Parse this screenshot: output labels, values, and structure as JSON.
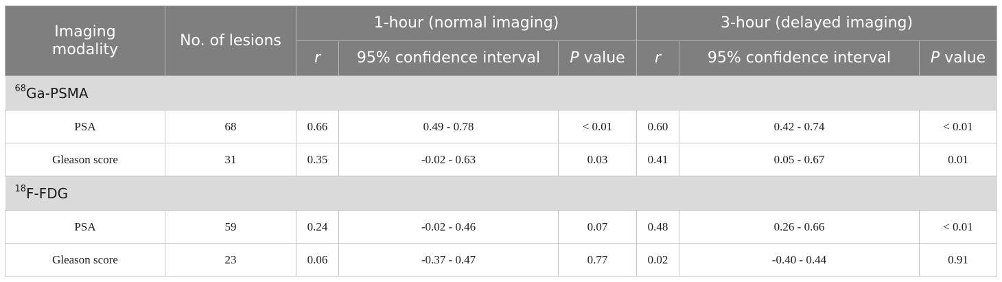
{
  "header": {
    "modality": "Imaging modality",
    "lesions": "No. of lesions",
    "group1": "1-hour (normal imaging)",
    "group2": "3-hour (delayed imaging)",
    "r": "r",
    "ci": "95% confidence interval",
    "p_italic": "P",
    "p_rest": " value"
  },
  "sections": [
    {
      "iso": "68",
      "name": "Ga-PSMA",
      "rows": [
        {
          "label": "PSA",
          "n": "68",
          "r1": "0.66",
          "ci1": "0.49 - 0.78",
          "p1": "< 0.01",
          "r2": "0.60",
          "ci2": "0.42 - 0.74",
          "p2": "< 0.01"
        },
        {
          "label": "Gleason score",
          "n": "31",
          "r1": "0.35",
          "ci1": "-0.02 - 0.63",
          "p1": "0.03",
          "r2": "0.41",
          "ci2": "0.05 - 0.67",
          "p2": "0.01"
        }
      ]
    },
    {
      "iso": "18",
      "name": "F-FDG",
      "rows": [
        {
          "label": "PSA",
          "n": "59",
          "r1": "0.24",
          "ci1": "-0.02 - 0.46",
          "p1": "0.07",
          "r2": "0.48",
          "ci2": "0.26 - 0.66",
          "p2": "< 0.01"
        },
        {
          "label": "Gleason score",
          "n": "23",
          "r1": "0.06",
          "ci1": "-0.37 - 0.47",
          "p1": "0.77",
          "r2": "0.02",
          "ci2": "-0.40 - 0.44",
          "p2": "0.91"
        }
      ]
    }
  ]
}
